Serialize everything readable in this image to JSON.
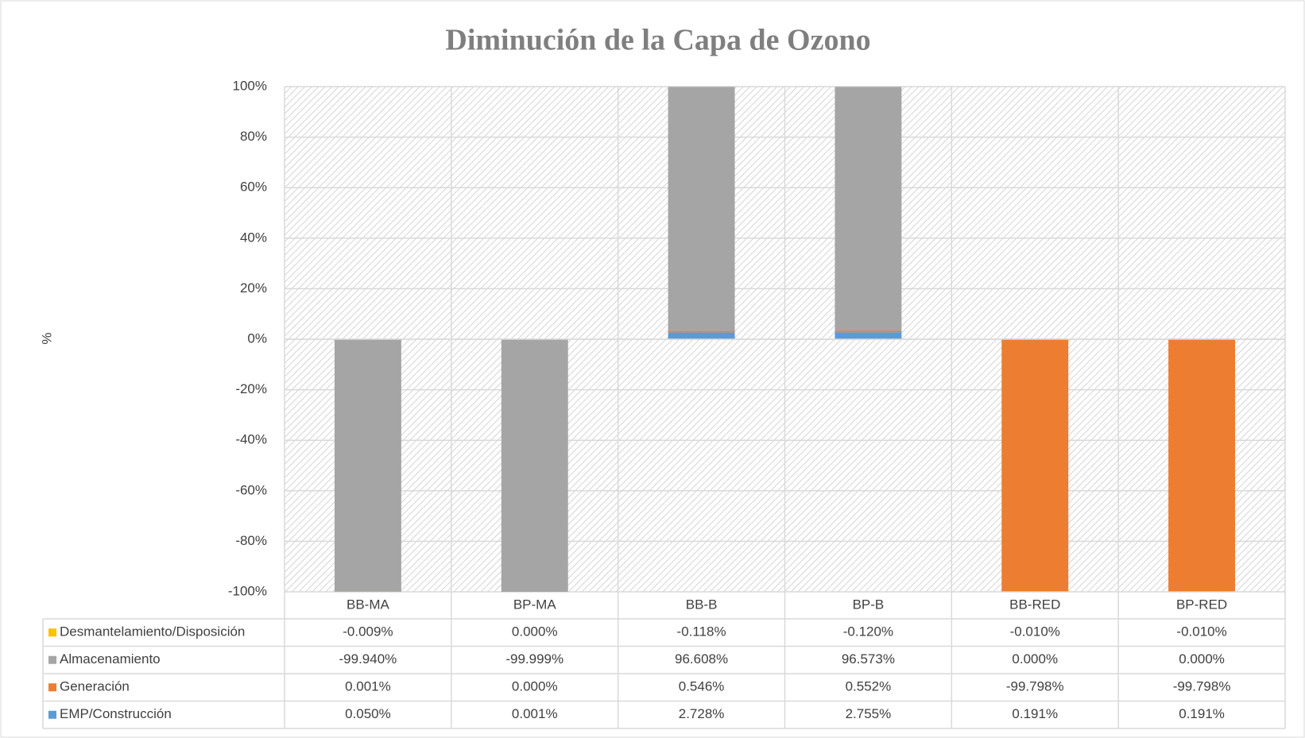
{
  "chart_data": {
    "type": "stacked_bar",
    "title": "Diminución de la Capa de Ozono",
    "y_label": "%",
    "categories": [
      "BB-MA",
      "BP-MA",
      "BB-B",
      "BP-B",
      "BB-RED",
      "BP-RED"
    ],
    "series": [
      {
        "name": "Desmantelamiento/Disposición",
        "color": "#ffc000",
        "values": [
          -0.009,
          0,
          -0.118,
          -0.12,
          -0.01,
          -0.01
        ],
        "value_labels": [
          "-0.009%",
          "0.000%",
          "-0.118%",
          "-0.120%",
          "-0.010%",
          "-0.010%"
        ]
      },
      {
        "name": "Almacenamiento",
        "color": "#a5a5a5",
        "values": [
          -99.94,
          -99.999,
          96.608,
          96.573,
          0,
          0
        ],
        "value_labels": [
          "-99.940%",
          "-99.999%",
          "96.608%",
          "96.573%",
          "0.000%",
          "0.000%"
        ]
      },
      {
        "name": "Generación",
        "color": "#ed7d31",
        "values": [
          0.001,
          0,
          0.546,
          0.552,
          -99.798,
          -99.798
        ],
        "value_labels": [
          "0.001%",
          "0.000%",
          "0.546%",
          "0.552%",
          "-99.798%",
          "-99.798%"
        ]
      },
      {
        "name": "EMP/Construcción",
        "color": "#5b9bd5",
        "values": [
          0.05,
          0.001,
          2.728,
          2.755,
          0.191,
          0.191
        ],
        "value_labels": [
          "0.050%",
          "0.001%",
          "2.728%",
          "2.755%",
          "0.191%",
          "0.191%"
        ]
      }
    ],
    "ylim": [
      -100,
      100
    ],
    "yticks": [
      {
        "value": -100,
        "label": "-100%"
      },
      {
        "value": -80,
        "label": "-80%"
      },
      {
        "value": -60,
        "label": "-60%"
      },
      {
        "value": -40,
        "label": "-40%"
      },
      {
        "value": -20,
        "label": "-20%"
      },
      {
        "value": 0,
        "label": "0%"
      },
      {
        "value": 20,
        "label": "20%"
      },
      {
        "value": 40,
        "label": "40%"
      },
      {
        "value": 60,
        "label": "60%"
      },
      {
        "value": 80,
        "label": "80%"
      },
      {
        "value": 100,
        "label": "100%"
      }
    ],
    "grid": true
  }
}
